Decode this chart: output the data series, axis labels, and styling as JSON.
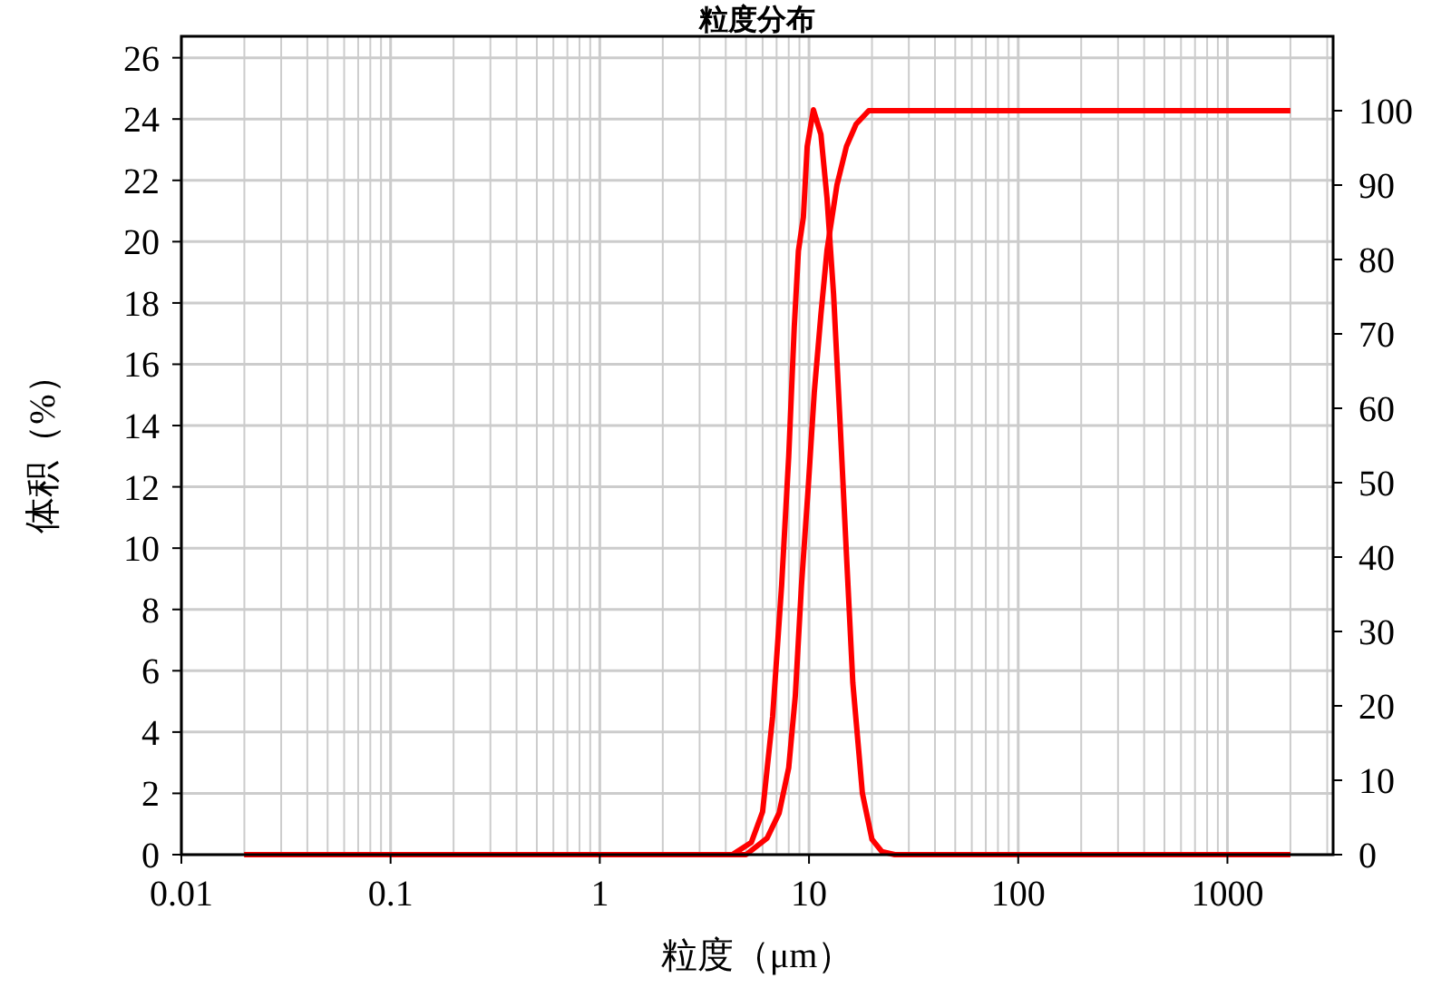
{
  "chart_data": {
    "type": "line",
    "title": "粒度分布",
    "xlabel": "粒度（μm）",
    "ylabel": "体积（%）",
    "log": "x",
    "grid": true,
    "line_style": "solid",
    "xlim": [
      0.01,
      3200
    ],
    "xticks": [
      0.01,
      0.1,
      1,
      10,
      100,
      1000
    ],
    "ylim": [
      0,
      26.7
    ],
    "yticks": [
      0,
      2,
      4,
      6,
      8,
      10,
      12,
      14,
      16,
      18,
      20,
      22,
      24,
      26
    ],
    "y2lim": [
      0,
      110
    ],
    "y2ticks": [
      0,
      10,
      20,
      30,
      40,
      50,
      60,
      70,
      80,
      90,
      100
    ],
    "series": [
      {
        "color": "#ff0000",
        "x": [
          0.02,
          4.3,
          5.3,
          6.0,
          6.7,
          7.4,
          8.0,
          8.5,
          8.9,
          9.4,
          9.8,
          10.5,
          11.4,
          12.2,
          13.1,
          14.1,
          15.1,
          16.2,
          18.0,
          20.0,
          22.3,
          25.7,
          2000
        ],
        "values": [
          0,
          0,
          0.4,
          1.4,
          4.5,
          8.8,
          13.0,
          17.2,
          19.7,
          20.8,
          23.1,
          24.3,
          23.5,
          21.4,
          18.3,
          14.0,
          9.8,
          5.6,
          2.0,
          0.5,
          0.1,
          0,
          0
        ]
      },
      {
        "color": "#ff0000",
        "axis": "y2",
        "x": [
          0.02,
          5.0,
          6.3,
          7.2,
          8.0,
          8.6,
          9.2,
          9.9,
          10.6,
          11.4,
          12.2,
          13.6,
          15.1,
          16.8,
          19.3,
          2000
        ],
        "values": [
          0,
          0,
          2.2,
          5.6,
          11.7,
          21.3,
          36.1,
          49.1,
          62.2,
          72.6,
          81.3,
          90.0,
          95.2,
          98.2,
          100,
          100
        ]
      }
    ]
  }
}
